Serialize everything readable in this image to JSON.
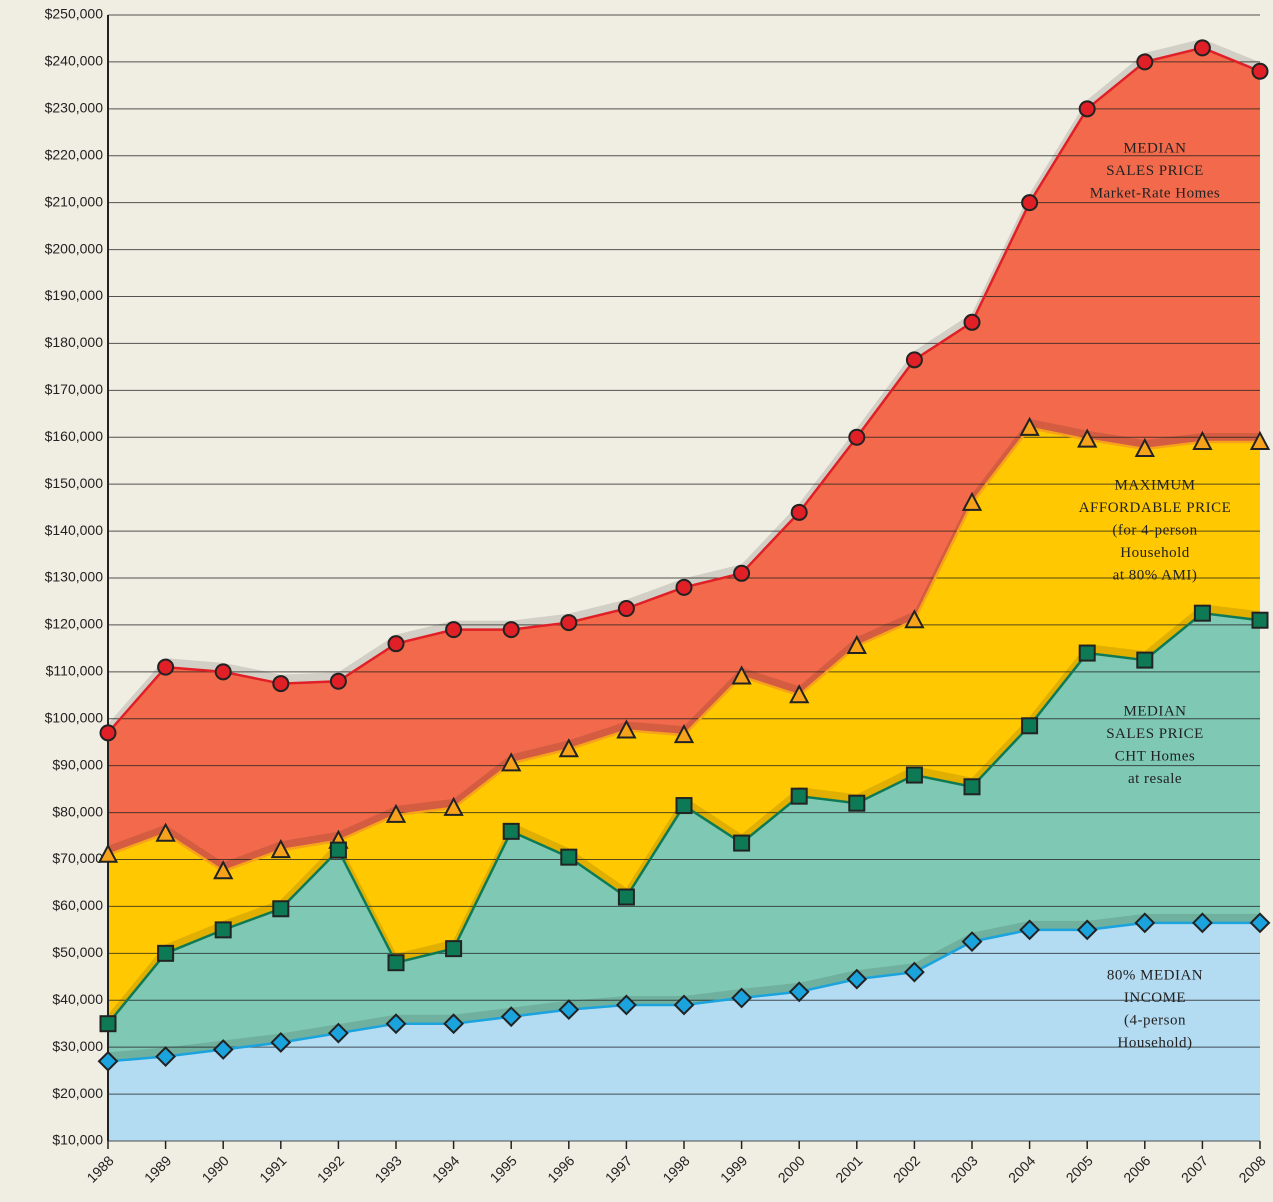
{
  "chart_data": {
    "type": "area",
    "categories": [
      "1988",
      "1989",
      "1990",
      "1991",
      "1992",
      "1993",
      "1994",
      "1995",
      "1996",
      "1997",
      "1998",
      "1999",
      "2000",
      "2001",
      "2002",
      "2003",
      "2004",
      "2005",
      "2006",
      "2007",
      "2008"
    ],
    "series": [
      {
        "name": "Median Sales Price Market-Rate Homes",
        "color": "#e01f26",
        "fill": "#f26a4b",
        "marker": "circle",
        "values": [
          97000,
          111000,
          110000,
          107500,
          108000,
          116000,
          119000,
          119000,
          120500,
          123500,
          128000,
          131000,
          144000,
          160000,
          176500,
          184500,
          210000,
          230000,
          240000,
          243000,
          238000
        ]
      },
      {
        "name": "Maximum Affordable Price",
        "color": "#f7a21b",
        "fill": "#ffc800",
        "marker": "triangle",
        "values": [
          71000,
          75500,
          67500,
          72000,
          74000,
          79500,
          81000,
          90500,
          93500,
          97500,
          96500,
          109000,
          105000,
          115500,
          121000,
          146000,
          162000,
          159500,
          157500,
          159000,
          159000
        ]
      },
      {
        "name": "Median Sales Price CHT Homes at resale",
        "color": "#0e7a55",
        "fill": "#7fc9b4",
        "marker": "square",
        "values": [
          35000,
          50000,
          55000,
          59500,
          72000,
          48000,
          51000,
          76000,
          70500,
          62000,
          81500,
          73500,
          83500,
          82000,
          88000,
          85500,
          98500,
          114000,
          112500,
          122500,
          121000
        ]
      },
      {
        "name": "80% Median Income",
        "color": "#1aa3dc",
        "fill": "#b3dbf2",
        "marker": "diamond",
        "values": [
          27000,
          28000,
          29500,
          31000,
          33000,
          35000,
          35000,
          36500,
          38000,
          39000,
          39000,
          40500,
          41800,
          44500,
          46000,
          52500,
          55000,
          55000,
          56500,
          56500,
          56500
        ]
      }
    ],
    "ylim": [
      10000,
      250000
    ],
    "yticks": [
      {
        "value": 10000,
        "label": "$10,000"
      },
      {
        "value": 20000,
        "label": "$20,000"
      },
      {
        "value": 30000,
        "label": "$30,000"
      },
      {
        "value": 40000,
        "label": "$40,000"
      },
      {
        "value": 50000,
        "label": "$50,000"
      },
      {
        "value": 60000,
        "label": "$60,000"
      },
      {
        "value": 70000,
        "label": "$70,000"
      },
      {
        "value": 80000,
        "label": "$80,000"
      },
      {
        "value": 90000,
        "label": "$90,000"
      },
      {
        "value": 100000,
        "label": "$100,000"
      },
      {
        "value": 110000,
        "label": "$110,000"
      },
      {
        "value": 120000,
        "label": "$120,000"
      },
      {
        "value": 130000,
        "label": "$130,000"
      },
      {
        "value": 140000,
        "label": "$140,000"
      },
      {
        "value": 150000,
        "label": "$150,000"
      },
      {
        "value": 160000,
        "label": "$160,000"
      },
      {
        "value": 170000,
        "label": "$170,000"
      },
      {
        "value": 180000,
        "label": "$180,000"
      },
      {
        "value": 190000,
        "label": "$190,000"
      },
      {
        "value": 200000,
        "label": "$200,000"
      },
      {
        "value": 210000,
        "label": "$210,000"
      },
      {
        "value": 220000,
        "label": "$220,000"
      },
      {
        "value": 230000,
        "label": "$230,000"
      },
      {
        "value": 240000,
        "label": "$240,000"
      },
      {
        "value": 250000,
        "label": "$250,000"
      }
    ],
    "grid": true,
    "annotations": [
      {
        "lines": [
          "MEDIAN",
          "SALES PRICE",
          "Market-Rate Homes"
        ]
      },
      {
        "lines": [
          "MAXIMUM",
          "AFFORDABLE PRICE",
          "(for 4-person",
          "Household",
          "at 80% AMI)"
        ]
      },
      {
        "lines": [
          "MEDIAN",
          "SALES PRICE",
          "CHT Homes",
          "at resale"
        ]
      },
      {
        "lines": [
          "80% MEDIAN",
          "INCOME",
          "(4-person",
          "Household)"
        ]
      }
    ]
  }
}
